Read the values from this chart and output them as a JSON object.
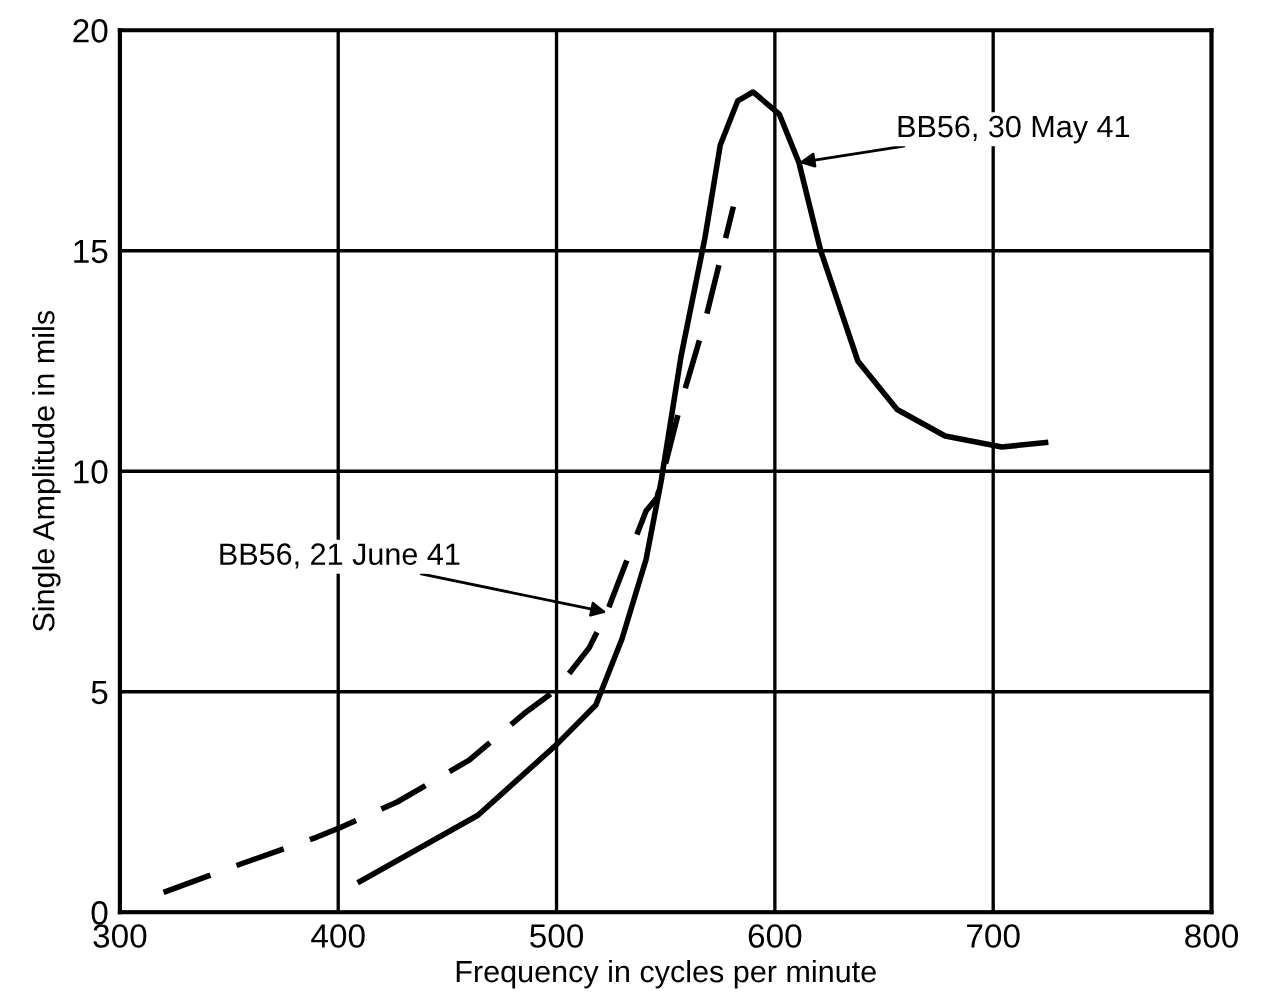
{
  "chart_data": {
    "type": "line",
    "xlabel": "Frequency in cycles per minute",
    "ylabel": "Single Amplitude in mils",
    "xlim": [
      300,
      800
    ],
    "xticks": [
      300,
      400,
      500,
      600,
      700,
      800
    ],
    "ylim": [
      0,
      20
    ],
    "yticks": [
      0,
      5,
      10,
      15,
      20
    ],
    "grid": true,
    "series": [
      {
        "color": "#000000",
        "line_style": "solid",
        "x": [
          410,
          464,
          500,
          518,
          530,
          541,
          548,
          557,
          568,
          575,
          583,
          590,
          602,
          611,
          621,
          638,
          656,
          678,
          704,
          724
        ],
        "values": [
          0.7,
          2.2,
          3.8,
          4.7,
          6.2,
          8.0,
          9.8,
          12.6,
          15.3,
          17.4,
          18.4,
          18.6,
          18.1,
          17.0,
          15.0,
          12.5,
          11.4,
          10.8,
          10.55,
          10.65
        ]
      },
      {
        "color": "#000000",
        "line_style": "dashed",
        "x": [
          320,
          350,
          390,
          400,
          427,
          460,
          485,
          500,
          515,
          523,
          541,
          546,
          557,
          568,
          581
        ],
        "values": [
          0.45,
          1.0,
          1.7,
          1.9,
          2.5,
          3.45,
          4.5,
          5.05,
          6.0,
          6.8,
          9.1,
          9.4,
          11.55,
          13.4,
          16.0
        ]
      }
    ],
    "annotations": [
      {
        "text": "BB56, 30 May 41",
        "x": 611,
        "y": 17.0
      },
      {
        "text": "BB56, 21 June 41",
        "x": 523,
        "y": 6.8
      }
    ]
  }
}
